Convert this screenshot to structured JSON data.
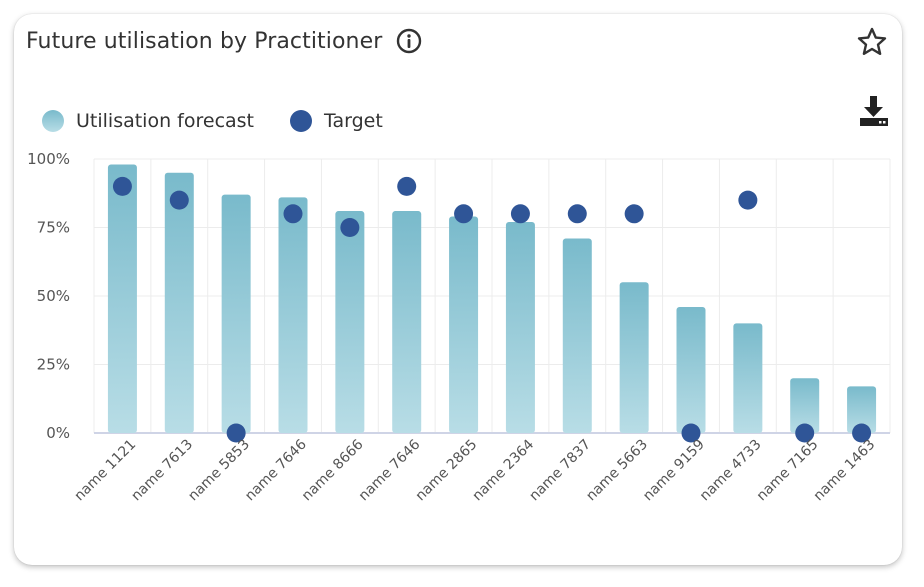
{
  "widget": {
    "title": "Future utilisation by Practitioner",
    "icons": {
      "info": "info-icon",
      "favorite": "star-icon",
      "download": "download-icon"
    }
  },
  "legend": {
    "forecast_label": "Utilisation forecast",
    "target_label": "Target"
  },
  "colors": {
    "bar_top": "#79bacb",
    "bar_bottom": "#b8dde6",
    "target": "#2f5597"
  },
  "chart_data": {
    "type": "bar",
    "categories": [
      "name 1121",
      "name 7613",
      "name 5853",
      "name 7646",
      "name 8666",
      "name 7646",
      "name 2865",
      "name 2364",
      "name 7837",
      "name 5663",
      "name 9159",
      "name 4733",
      "name 7165",
      "name 1463"
    ],
    "series": [
      {
        "name": "Utilisation forecast",
        "type": "bar",
        "values": [
          98,
          95,
          87,
          86,
          81,
          81,
          79,
          77,
          71,
          55,
          46,
          40,
          20,
          17
        ]
      },
      {
        "name": "Target",
        "type": "scatter",
        "values": [
          90,
          85,
          0,
          80,
          75,
          90,
          80,
          80,
          80,
          80,
          0,
          85,
          0,
          0
        ]
      }
    ],
    "yticks": [
      "100%",
      "75%",
      "50%",
      "25%",
      "0%"
    ],
    "ylim": [
      0,
      100
    ],
    "grid": true,
    "legend_position": "top-left"
  }
}
